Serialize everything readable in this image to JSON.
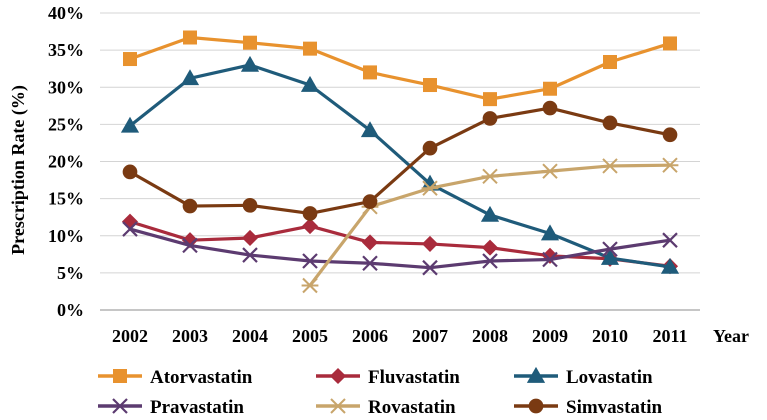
{
  "chart_data": {
    "type": "line",
    "title": "",
    "xlabel": "Year",
    "ylabel": "Prescription Rate (%)",
    "ylim": [
      0,
      40
    ],
    "ytick_step": 5,
    "ytick_suffix": "%",
    "grid": true,
    "legend_position": "bottom",
    "categories": [
      "2002",
      "2003",
      "2004",
      "2005",
      "2006",
      "2007",
      "2008",
      "2009",
      "2010",
      "2011"
    ],
    "series": [
      {
        "name": "Atorvastatin",
        "color": "#E8922E",
        "marker": "square",
        "values": [
          33.8,
          36.7,
          36.0,
          35.2,
          32.0,
          30.3,
          28.4,
          29.8,
          33.4,
          35.9
        ]
      },
      {
        "name": "Fluvastatin",
        "color": "#A92B3C",
        "marker": "diamond",
        "values": [
          11.9,
          9.4,
          9.7,
          11.3,
          9.1,
          8.9,
          8.4,
          7.3,
          6.9,
          5.9
        ]
      },
      {
        "name": "Lovastatin",
        "color": "#1F5B7A",
        "marker": "triangle",
        "values": [
          24.8,
          31.2,
          33.0,
          30.3,
          24.2,
          17.0,
          12.8,
          10.3,
          7.0,
          5.8
        ]
      },
      {
        "name": "Pravastatin",
        "color": "#5C3B70",
        "marker": "x",
        "values": [
          10.9,
          8.7,
          7.4,
          6.6,
          6.3,
          5.7,
          6.6,
          6.8,
          8.2,
          9.4
        ]
      },
      {
        "name": "Rovastatin",
        "color": "#C8A56B",
        "marker": "star",
        "values": [
          null,
          null,
          null,
          3.3,
          13.9,
          16.4,
          18.0,
          18.7,
          19.4,
          19.5
        ]
      },
      {
        "name": "Simvastatin",
        "color": "#7A3A12",
        "marker": "circle",
        "values": [
          18.6,
          14.0,
          14.1,
          13.0,
          14.6,
          21.8,
          25.8,
          27.2,
          25.2,
          23.6
        ]
      }
    ]
  }
}
